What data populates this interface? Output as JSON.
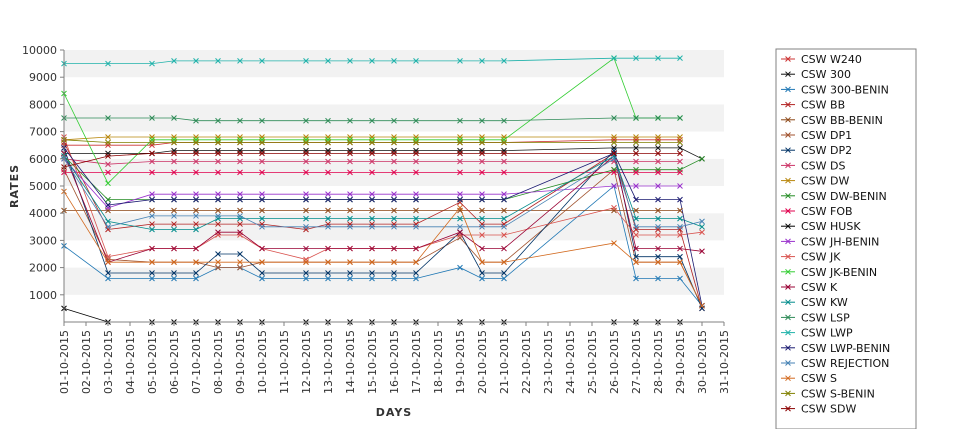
{
  "chart_data": {
    "type": "line",
    "xlabel": "DAYS",
    "ylabel": "RATES",
    "ylim": [
      0,
      10000
    ],
    "yticks": [
      1000,
      2000,
      3000,
      4000,
      5000,
      6000,
      7000,
      8000,
      9000,
      10000
    ],
    "grid": "horizontal bands",
    "legend_position": "right",
    "categories": [
      "01-10-2015",
      "02-10-2015",
      "03-10-2015",
      "04-10-2015",
      "05-10-2015",
      "06-10-2015",
      "07-10-2015",
      "08-10-2015",
      "09-10-2015",
      "10-10-2015",
      "11-10-2015",
      "12-10-2015",
      "13-10-2015",
      "14-10-2015",
      "15-10-2015",
      "16-10-2015",
      "17-10-2015",
      "18-10-2015",
      "19-10-2015",
      "20-10-2015",
      "21-10-2015",
      "22-10-2015",
      "23-10-2015",
      "24-10-2015",
      "25-10-2015",
      "26-10-2015",
      "27-10-2015",
      "28-10-2015",
      "29-10-2015",
      "30-10-2015",
      "31-10-2015"
    ],
    "series": [
      {
        "name": "CSW  W240",
        "color": "#cc3333",
        "values": [
          6500,
          null,
          6500,
          null,
          6500,
          6600,
          6600,
          6600,
          6600,
          6600,
          null,
          6600,
          6600,
          6600,
          6600,
          6600,
          6600,
          null,
          6600,
          6600,
          6600,
          null,
          null,
          null,
          null,
          6700,
          6700,
          6700,
          6700,
          null,
          null
        ]
      },
      {
        "name": "CSW 300",
        "color": "#111111",
        "values": [
          6200,
          null,
          6200,
          null,
          6200,
          6300,
          6300,
          6300,
          6300,
          6300,
          null,
          6300,
          6300,
          6300,
          6300,
          6300,
          6300,
          null,
          6300,
          6300,
          6300,
          null,
          null,
          null,
          null,
          6400,
          6400,
          6400,
          6400,
          6000,
          null
        ]
      },
      {
        "name": "CSW 300-BENIN",
        "color": "#1f77b4",
        "values": [
          2800,
          null,
          1600,
          null,
          1600,
          1600,
          1600,
          2000,
          2000,
          1600,
          null,
          1600,
          1600,
          1600,
          1600,
          1600,
          1600,
          null,
          2000,
          1600,
          1600,
          null,
          null,
          null,
          null,
          5000,
          1600,
          1600,
          1600,
          600,
          null
        ]
      },
      {
        "name": "CSW BB",
        "color": "#b22222",
        "values": [
          6600,
          null,
          3400,
          null,
          3600,
          3600,
          3600,
          3600,
          3600,
          3600,
          null,
          3400,
          3600,
          3600,
          3600,
          3600,
          3600,
          null,
          4400,
          3600,
          3600,
          null,
          null,
          null,
          null,
          6200,
          3400,
          3400,
          3400,
          500,
          null
        ]
      },
      {
        "name": "CSW BB-BENIN",
        "color": "#8b4513",
        "values": [
          4100,
          null,
          4100,
          null,
          4100,
          4100,
          4100,
          4100,
          4100,
          4100,
          null,
          4100,
          4100,
          4100,
          4100,
          4100,
          4100,
          null,
          4100,
          4100,
          4100,
          null,
          null,
          null,
          null,
          4100,
          4100,
          4100,
          4100,
          null,
          null
        ]
      },
      {
        "name": "CSW DP1",
        "color": "#a0522d",
        "values": [
          5600,
          null,
          2300,
          null,
          2200,
          2200,
          2200,
          2000,
          2000,
          2200,
          null,
          2200,
          2200,
          2200,
          2200,
          2200,
          2200,
          null,
          3100,
          2200,
          2200,
          null,
          null,
          null,
          null,
          5600,
          2200,
          2200,
          2200,
          600,
          null
        ]
      },
      {
        "name": "CSW DP2",
        "color": "#003366",
        "values": [
          6400,
          null,
          1800,
          null,
          1800,
          1800,
          1800,
          2500,
          2500,
          1800,
          null,
          1800,
          1800,
          1800,
          1800,
          1800,
          1800,
          null,
          3300,
          1800,
          1800,
          null,
          null,
          null,
          null,
          6300,
          2400,
          2400,
          2400,
          500,
          null
        ]
      },
      {
        "name": "CSW DS",
        "color": "#cc3366",
        "values": [
          6000,
          null,
          5800,
          null,
          5900,
          5900,
          5900,
          5900,
          5900,
          5900,
          null,
          5900,
          5900,
          5900,
          5900,
          5900,
          5900,
          null,
          5900,
          5900,
          5900,
          null,
          null,
          null,
          null,
          5900,
          5900,
          5900,
          5900,
          null,
          null
        ]
      },
      {
        "name": "CSW DW",
        "color": "#b8860b",
        "values": [
          6700,
          null,
          6800,
          null,
          6800,
          6800,
          6800,
          6800,
          6800,
          6800,
          null,
          6800,
          6800,
          6800,
          6800,
          6800,
          6800,
          null,
          6800,
          6800,
          6800,
          null,
          null,
          null,
          null,
          6800,
          6800,
          6800,
          6800,
          null,
          null
        ]
      },
      {
        "name": "CSW DW-BENIN",
        "color": "#228b22",
        "values": [
          6100,
          null,
          4500,
          null,
          4500,
          4500,
          4500,
          4500,
          4500,
          4500,
          null,
          4500,
          4500,
          4500,
          4500,
          4500,
          4500,
          null,
          4500,
          4500,
          4500,
          null,
          null,
          null,
          null,
          5600,
          5600,
          5600,
          5600,
          6000,
          null
        ]
      },
      {
        "name": "CSW FOB",
        "color": "#e0004d",
        "values": [
          5500,
          null,
          5500,
          null,
          5500,
          5500,
          5500,
          5500,
          5500,
          5500,
          null,
          5500,
          5500,
          5500,
          5500,
          5500,
          5500,
          null,
          5500,
          5500,
          5500,
          null,
          null,
          null,
          null,
          5500,
          5500,
          5500,
          5500,
          null,
          null
        ]
      },
      {
        "name": "CSW HUSK",
        "color": "#000000",
        "values": [
          500,
          null,
          0,
          null,
          0,
          0,
          0,
          0,
          0,
          0,
          null,
          0,
          0,
          0,
          0,
          0,
          0,
          null,
          0,
          0,
          0,
          null,
          null,
          null,
          null,
          0,
          0,
          0,
          0,
          null,
          null
        ]
      },
      {
        "name": "CSW JH-BENIN",
        "color": "#9932cc",
        "values": [
          6000,
          null,
          4200,
          null,
          4700,
          4700,
          4700,
          4700,
          4700,
          4700,
          null,
          4700,
          4700,
          4700,
          4700,
          4700,
          4700,
          null,
          4700,
          4700,
          4700,
          null,
          null,
          null,
          null,
          5000,
          5000,
          5000,
          5000,
          null,
          null
        ]
      },
      {
        "name": "CSW JK",
        "color": "#d9534f",
        "values": [
          6800,
          null,
          2400,
          null,
          2700,
          2700,
          2700,
          3200,
          3200,
          2700,
          null,
          2300,
          2700,
          2700,
          2700,
          2700,
          2700,
          null,
          3200,
          3200,
          3200,
          null,
          null,
          null,
          null,
          4200,
          3200,
          3200,
          3200,
          3300,
          null
        ]
      },
      {
        "name": "CSW JK-BENIN",
        "color": "#32cd32",
        "values": [
          8400,
          null,
          5100,
          null,
          6700,
          6700,
          6700,
          6700,
          6700,
          6700,
          null,
          6700,
          6700,
          6700,
          6700,
          6700,
          6700,
          null,
          6700,
          6700,
          6700,
          null,
          null,
          null,
          null,
          9700,
          7500,
          7500,
          7500,
          null,
          null
        ]
      },
      {
        "name": "CSW K",
        "color": "#990033",
        "values": [
          6200,
          null,
          2200,
          null,
          2700,
          2700,
          2700,
          3300,
          3300,
          2700,
          null,
          2700,
          2700,
          2700,
          2700,
          2700,
          2700,
          null,
          3300,
          2700,
          2700,
          null,
          null,
          null,
          null,
          6100,
          2700,
          2700,
          2700,
          2600,
          null
        ]
      },
      {
        "name": "CSW KW",
        "color": "#008b8b",
        "values": [
          6100,
          null,
          3700,
          null,
          3400,
          3400,
          3400,
          3800,
          3800,
          3800,
          null,
          3800,
          3800,
          3800,
          3800,
          3800,
          3800,
          null,
          3800,
          3800,
          3800,
          null,
          null,
          null,
          null,
          6100,
          3800,
          3800,
          3800,
          3500,
          null
        ]
      },
      {
        "name": "CSW LSP",
        "color": "#2e8b57",
        "values": [
          7500,
          null,
          7500,
          null,
          7500,
          7500,
          7400,
          7400,
          7400,
          7400,
          null,
          7400,
          7400,
          7400,
          7400,
          7400,
          7400,
          null,
          7400,
          7400,
          7400,
          null,
          null,
          null,
          null,
          7500,
          7500,
          7500,
          7500,
          null,
          null
        ]
      },
      {
        "name": "CSW LWP",
        "color": "#20b2aa",
        "values": [
          9500,
          null,
          9500,
          null,
          9500,
          9600,
          9600,
          9600,
          9600,
          9600,
          null,
          9600,
          9600,
          9600,
          9600,
          9600,
          9600,
          null,
          9600,
          9600,
          9600,
          null,
          null,
          null,
          null,
          9700,
          9700,
          9700,
          9700,
          null,
          null
        ]
      },
      {
        "name": "CSW LWP-BENIN",
        "color": "#191970",
        "values": [
          6400,
          null,
          4300,
          null,
          4500,
          4500,
          4500,
          4500,
          4500,
          4500,
          null,
          4500,
          4500,
          4500,
          4500,
          4500,
          4500,
          null,
          4500,
          4500,
          4500,
          null,
          null,
          null,
          null,
          6200,
          4500,
          4500,
          4500,
          600,
          null
        ]
      },
      {
        "name": "CSW REJECTION",
        "color": "#4682b4",
        "values": [
          6000,
          null,
          3500,
          null,
          3900,
          3900,
          3900,
          3900,
          3900,
          3500,
          null,
          3500,
          3500,
          3500,
          3500,
          3500,
          3500,
          null,
          3500,
          3500,
          3500,
          null,
          null,
          null,
          null,
          6000,
          3500,
          3500,
          3500,
          3700,
          null
        ]
      },
      {
        "name": "CSW S",
        "color": "#d2691e",
        "values": [
          4800,
          null,
          2200,
          null,
          2200,
          2200,
          2200,
          2200,
          2200,
          2200,
          null,
          2200,
          2200,
          2200,
          2200,
          2200,
          2200,
          null,
          4200,
          2200,
          2200,
          null,
          null,
          null,
          null,
          2900,
          2200,
          2200,
          2200,
          600,
          null
        ]
      },
      {
        "name": "CSW S-BENIN",
        "color": "#808000",
        "values": [
          6700,
          null,
          6600,
          null,
          6600,
          6600,
          6600,
          6600,
          6600,
          6600,
          null,
          6600,
          6600,
          6600,
          6600,
          6600,
          6600,
          null,
          6600,
          6600,
          6600,
          null,
          null,
          null,
          null,
          6600,
          6600,
          6600,
          6600,
          null,
          null
        ]
      },
      {
        "name": "CSW SDW",
        "color": "#8b0000",
        "values": [
          5700,
          null,
          6100,
          null,
          6200,
          6200,
          6200,
          6200,
          6200,
          6200,
          null,
          6200,
          6200,
          6200,
          6200,
          6200,
          6200,
          null,
          6200,
          6200,
          6200,
          null,
          null,
          null,
          null,
          6200,
          6200,
          6200,
          6200,
          null,
          null
        ]
      }
    ]
  }
}
